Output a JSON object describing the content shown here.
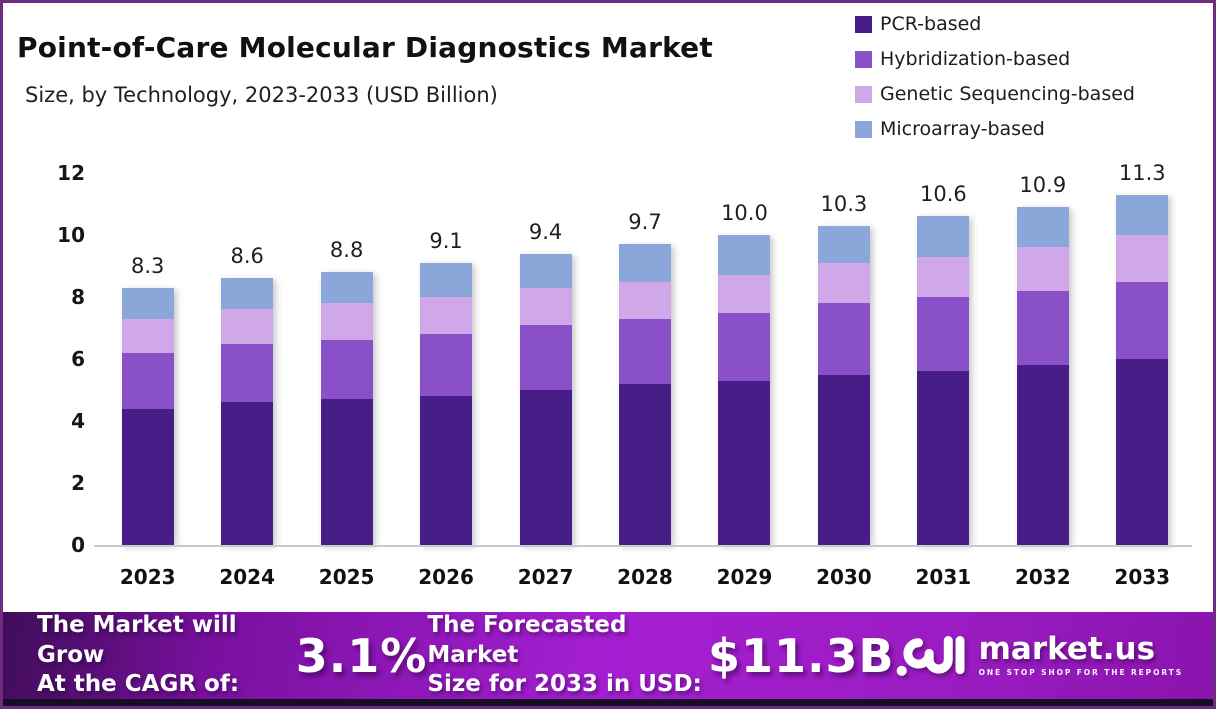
{
  "header": {
    "title": "Point-of-Care Molecular Diagnostics Market",
    "subtitle": "Size, by Technology, 2023-2033 (USD Billion)"
  },
  "chart_data": {
    "type": "bar",
    "stacked": true,
    "title": "Point-of-Care Molecular Diagnostics Market Size, by Technology, 2023-2033 (USD Billion)",
    "categories": [
      "2023",
      "2024",
      "2025",
      "2026",
      "2027",
      "2028",
      "2029",
      "2030",
      "2031",
      "2032",
      "2033"
    ],
    "series": [
      {
        "name": "PCR-based",
        "color": "#471d87",
        "values": [
          4.4,
          4.6,
          4.7,
          4.8,
          5.0,
          5.2,
          5.3,
          5.5,
          5.6,
          5.8,
          6.0
        ]
      },
      {
        "name": "Hybridization-based",
        "color": "#8950c8",
        "values": [
          1.8,
          1.9,
          1.9,
          2.0,
          2.1,
          2.1,
          2.2,
          2.3,
          2.4,
          2.4,
          2.5
        ]
      },
      {
        "name": "Genetic Sequencing-based",
        "color": "#d0a7e9",
        "values": [
          1.1,
          1.1,
          1.2,
          1.2,
          1.2,
          1.2,
          1.2,
          1.3,
          1.3,
          1.4,
          1.5
        ]
      },
      {
        "name": "Microarray-based",
        "color": "#8ba7d9",
        "values": [
          1.0,
          1.0,
          1.0,
          1.1,
          1.1,
          1.2,
          1.3,
          1.2,
          1.3,
          1.3,
          1.3
        ]
      }
    ],
    "totals": [
      8.3,
      8.6,
      8.8,
      9.1,
      9.4,
      9.7,
      10.0,
      10.3,
      10.6,
      10.9,
      11.3
    ],
    "total_labels": [
      "8.3",
      "8.6",
      "8.8",
      "9.1",
      "9.4",
      "9.7",
      "10.0",
      "10.3",
      "10.6",
      "10.9",
      "11.3"
    ],
    "xlabel": "",
    "ylabel": "",
    "ylim": [
      0,
      12
    ],
    "yticks": [
      0,
      2,
      4,
      6,
      8,
      10,
      12
    ],
    "grid": false,
    "legend_position": "top-right"
  },
  "banner": {
    "cagr_line1": "The Market will Grow",
    "cagr_line2": "At the CAGR of:",
    "cagr_value": "3.1%",
    "forecast_line1": "The Forecasted Market",
    "forecast_line2": "Size for 2033 in USD:",
    "forecast_value": "$11.3B",
    "brand_name": "market.us",
    "brand_tagline": "ONE STOP SHOP FOR THE REPORTS"
  },
  "colors": {
    "page_border": "#702a80",
    "banner_gradient": [
      "#400d59",
      "#7a10a0",
      "#a51fd2",
      "#9a1cc2",
      "#8a14ae"
    ],
    "bottom_strip": "#170e24",
    "baseline": "#c9c9c9",
    "text_dark": "#111111"
  }
}
